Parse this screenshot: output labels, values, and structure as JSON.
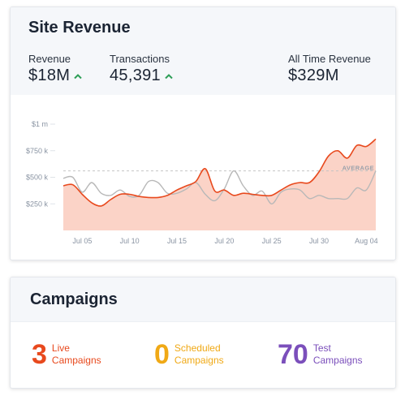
{
  "revenue_card": {
    "title": "Site Revenue",
    "metrics": [
      {
        "label": "Revenue",
        "value": "$18M",
        "trend": "up-arrow-icon"
      },
      {
        "label": "Transactions",
        "value": "45,391",
        "trend": "up-arrow-icon"
      },
      {
        "label": "All Time Revenue",
        "value": "$329M"
      }
    ],
    "colors": {
      "up": "#2e9e57",
      "revenue_line": "#e8491d",
      "revenue_fill": "#fbd3c7",
      "compare_line": "#b8b8b8",
      "average_line": "#c4c4c4"
    }
  },
  "chart_data": {
    "type": "area",
    "x": [
      "Jul 03",
      "Jul 04",
      "Jul 05",
      "Jul 06",
      "Jul 07",
      "Jul 08",
      "Jul 09",
      "Jul 10",
      "Jul 11",
      "Jul 12",
      "Jul 13",
      "Jul 14",
      "Jul 15",
      "Jul 16",
      "Jul 17",
      "Jul 18",
      "Jul 19",
      "Jul 20",
      "Jul 21",
      "Jul 22",
      "Jul 23",
      "Jul 24",
      "Jul 25",
      "Jul 26",
      "Jul 27",
      "Jul 28",
      "Jul 29",
      "Jul 30",
      "Jul 31",
      "Aug 01",
      "Aug 02",
      "Aug 03",
      "Aug 04",
      "Aug 05"
    ],
    "x_ticks": [
      "Jul 05",
      "Jul 10",
      "Jul 15",
      "Jul 20",
      "Jul 25",
      "Jul 30",
      "Aug 04"
    ],
    "y_ticks": [
      "$1 m",
      "$750 k",
      "$500 k",
      "$250 k"
    ],
    "ylim": [
      0,
      1000000
    ],
    "average": {
      "label": "AVERAGE",
      "value": 560000
    },
    "series": [
      {
        "values": [
          420000,
          430000,
          340000,
          260000,
          230000,
          290000,
          340000,
          340000,
          320000,
          310000,
          310000,
          330000,
          380000,
          420000,
          460000,
          580000,
          370000,
          380000,
          330000,
          350000,
          340000,
          330000,
          330000,
          380000,
          430000,
          450000,
          450000,
          550000,
          700000,
          750000,
          680000,
          800000,
          790000,
          860000
        ]
      },
      {
        "values": [
          490000,
          500000,
          360000,
          450000,
          350000,
          330000,
          380000,
          320000,
          330000,
          460000,
          450000,
          350000,
          350000,
          390000,
          450000,
          340000,
          280000,
          390000,
          560000,
          420000,
          330000,
          370000,
          250000,
          360000,
          390000,
          380000,
          300000,
          330000,
          300000,
          300000,
          300000,
          400000,
          380000,
          560000
        ]
      }
    ]
  },
  "campaigns_card": {
    "title": "Campaigns",
    "stats": [
      {
        "count": "3",
        "line1": "Live",
        "line2": "Campaigns",
        "color": "#e8491d"
      },
      {
        "count": "0",
        "line1": "Scheduled",
        "line2": "Campaigns",
        "color": "#f0a916"
      },
      {
        "count": "70",
        "line1": "Test",
        "line2": "Campaigns",
        "color": "#7b4fbb"
      }
    ]
  }
}
